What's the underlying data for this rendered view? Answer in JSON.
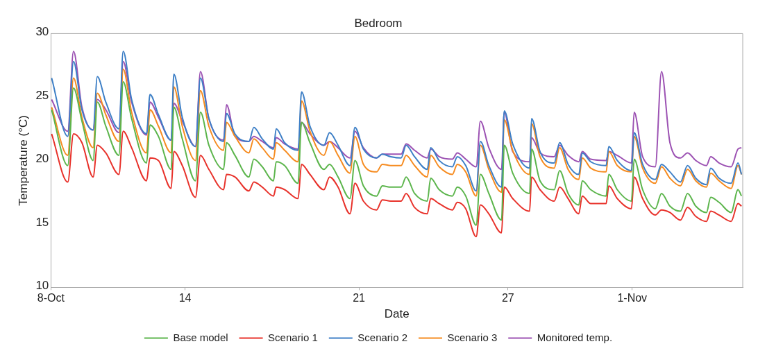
{
  "chart_data": {
    "type": "line",
    "title": "Bedroom",
    "xlabel": "Date",
    "ylabel": "Temperature (°C)",
    "legend": "bottom",
    "xlim": [
      8.6,
      36.45
    ],
    "xticks": [
      {
        "value": 8.6,
        "label": "8-Oct"
      },
      14,
      21,
      27,
      {
        "value": 32,
        "label": "1-Nov"
      }
    ],
    "ylim": [
      10,
      30
    ],
    "yticks": [
      10,
      15,
      20,
      25,
      30
    ],
    "x": [
      8.63,
      9.28,
      9.51,
      9.85,
      10.3,
      10.47,
      10.81,
      11.34,
      11.51,
      11.85,
      12.45,
      12.59,
      12.93,
      13.44,
      13.55,
      13.89,
      14.42,
      14.62,
      14.96,
      15.55,
      15.67,
      16.01,
      16.57,
      16.77,
      17.11,
      17.56,
      17.67,
      18.01,
      18.55,
      18.69,
      19.03,
      19.59,
      19.82,
      20.16,
      20.64,
      20.84,
      21.18,
      21.71,
      21.94,
      22.28,
      22.7,
      22.9,
      23.24,
      23.75,
      23.89,
      24.23,
      24.76,
      24.96,
      25.3,
      25.72,
      25.89,
      26.23,
      26.74,
      26.85,
      27.19,
      27.87,
      27.95,
      28.29,
      28.86,
      29.08,
      29.42,
      29.85,
      29.99,
      30.33,
      30.95,
      31.06,
      31.4,
      31.97,
      32.08,
      32.42,
      32.93,
      33.18,
      33.52,
      33.94,
      34.23,
      34.56,
      34.99,
      35.16,
      35.5,
      35.98,
      36.26,
      36.4
    ],
    "series": [
      {
        "name": "Base model",
        "color": "#5cb54c",
        "values": [
          24.0,
          19.6,
          25.7,
          23.1,
          20.0,
          24.6,
          22.7,
          20.4,
          26.2,
          23.3,
          19.8,
          22.8,
          21.9,
          19.3,
          24.2,
          21.7,
          18.4,
          23.8,
          21.2,
          19.3,
          21.4,
          20.4,
          18.7,
          20.1,
          19.5,
          18.4,
          19.9,
          19.6,
          18.2,
          23.0,
          21.4,
          19.3,
          19.7,
          18.7,
          17.0,
          20.0,
          18.0,
          17.2,
          18.0,
          17.9,
          17.9,
          18.7,
          17.4,
          16.8,
          18.6,
          17.7,
          17.2,
          17.9,
          17.2,
          14.9,
          18.9,
          17.4,
          15.3,
          21.2,
          19.0,
          17.4,
          20.9,
          18.4,
          17.7,
          19.2,
          17.4,
          16.5,
          18.4,
          17.7,
          17.2,
          18.9,
          17.7,
          16.8,
          20.1,
          17.7,
          16.2,
          17.4,
          16.4,
          16.0,
          17.4,
          16.4,
          15.9,
          17.1,
          16.7,
          15.9,
          17.7,
          17.2
        ]
      },
      {
        "name": "Scenario 1",
        "color": "#e8322b",
        "values": [
          22.1,
          18.3,
          22.1,
          21.4,
          18.7,
          21.2,
          20.6,
          18.9,
          22.3,
          21.0,
          18.4,
          20.2,
          20.0,
          17.8,
          20.7,
          19.6,
          17.1,
          20.4,
          19.3,
          17.7,
          18.9,
          18.7,
          17.6,
          18.3,
          17.9,
          17.2,
          17.9,
          17.7,
          17.0,
          19.7,
          18.9,
          17.7,
          18.7,
          17.9,
          15.8,
          18.2,
          16.8,
          16.1,
          16.9,
          16.8,
          16.8,
          17.4,
          16.3,
          15.8,
          17.0,
          16.6,
          16.1,
          16.7,
          16.2,
          14.0,
          16.5,
          15.8,
          14.3,
          17.9,
          17.0,
          16.0,
          18.7,
          17.7,
          16.8,
          17.9,
          17.0,
          15.8,
          17.2,
          16.6,
          16.6,
          18.0,
          17.0,
          16.2,
          18.7,
          17.0,
          15.7,
          16.1,
          15.9,
          15.3,
          16.3,
          15.6,
          15.2,
          16.0,
          15.7,
          15.2,
          16.6,
          16.4
        ]
      },
      {
        "name": "Scenario 2",
        "color": "#3d7fc6",
        "values": [
          26.5,
          21.9,
          27.8,
          24.0,
          22.4,
          26.6,
          24.6,
          22.5,
          28.6,
          24.8,
          22.1,
          25.2,
          23.6,
          21.6,
          26.8,
          23.4,
          21.1,
          26.5,
          23.3,
          21.5,
          23.7,
          22.1,
          21.5,
          22.6,
          21.7,
          20.9,
          22.5,
          21.4,
          20.8,
          25.4,
          22.7,
          21.2,
          22.2,
          21.2,
          19.6,
          22.6,
          20.9,
          20.2,
          20.5,
          20.3,
          20.2,
          21.2,
          20.3,
          19.3,
          21.0,
          20.0,
          19.5,
          20.3,
          19.6,
          17.6,
          21.5,
          19.6,
          17.9,
          23.9,
          21.3,
          19.4,
          23.3,
          20.7,
          19.8,
          21.4,
          19.7,
          18.9,
          20.6,
          19.9,
          19.6,
          21.1,
          20.0,
          19.2,
          22.2,
          19.7,
          18.5,
          19.7,
          19.1,
          18.3,
          19.6,
          18.6,
          18.1,
          19.4,
          18.6,
          18.2,
          19.8,
          18.9
        ]
      },
      {
        "name": "Scenario 3",
        "color": "#f68b1f",
        "values": [
          24.2,
          20.4,
          26.5,
          23.4,
          21.0,
          25.3,
          23.6,
          21.5,
          27.2,
          23.8,
          20.6,
          24.0,
          22.7,
          20.6,
          25.8,
          22.7,
          20.0,
          25.5,
          22.7,
          20.8,
          23.0,
          21.9,
          20.6,
          21.7,
          21.0,
          20.1,
          21.4,
          20.8,
          19.9,
          24.7,
          22.3,
          20.4,
          21.5,
          20.4,
          19.0,
          21.9,
          19.7,
          19.1,
          19.7,
          19.6,
          19.6,
          20.4,
          19.6,
          18.7,
          20.4,
          19.5,
          18.9,
          19.7,
          19.1,
          17.2,
          21.2,
          19.3,
          17.5,
          23.2,
          20.8,
          18.9,
          22.9,
          20.3,
          19.4,
          21.0,
          19.3,
          18.5,
          20.2,
          19.4,
          19.1,
          20.7,
          19.6,
          19.1,
          21.9,
          19.4,
          18.2,
          19.5,
          18.6,
          18.0,
          19.3,
          18.4,
          17.9,
          19.0,
          18.4,
          17.8,
          19.6,
          18.9
        ]
      },
      {
        "name": "Monitored temp.",
        "color": "#9c52b3",
        "values": [
          24.8,
          22.3,
          28.6,
          24.2,
          22.4,
          24.8,
          24.0,
          22.2,
          27.8,
          24.6,
          22.0,
          24.6,
          23.4,
          21.6,
          24.5,
          23.1,
          21.1,
          27.0,
          23.3,
          21.6,
          24.4,
          21.9,
          21.5,
          21.9,
          21.5,
          21.0,
          21.8,
          21.3,
          20.9,
          23.0,
          22.1,
          21.2,
          21.5,
          21.0,
          20.2,
          22.3,
          21.0,
          20.2,
          20.5,
          20.5,
          20.5,
          21.3,
          20.8,
          20.2,
          20.9,
          20.3,
          20.1,
          20.6,
          20.1,
          19.5,
          23.1,
          21.0,
          19.3,
          23.8,
          20.7,
          19.9,
          21.8,
          20.6,
          20.3,
          21.2,
          20.4,
          19.9,
          20.7,
          20.1,
          20.0,
          20.7,
          20.4,
          19.8,
          23.8,
          20.3,
          19.5,
          27.0,
          21.4,
          20.2,
          20.6,
          20.0,
          19.6,
          20.3,
          19.8,
          19.5,
          20.9,
          21.0
        ]
      }
    ]
  }
}
